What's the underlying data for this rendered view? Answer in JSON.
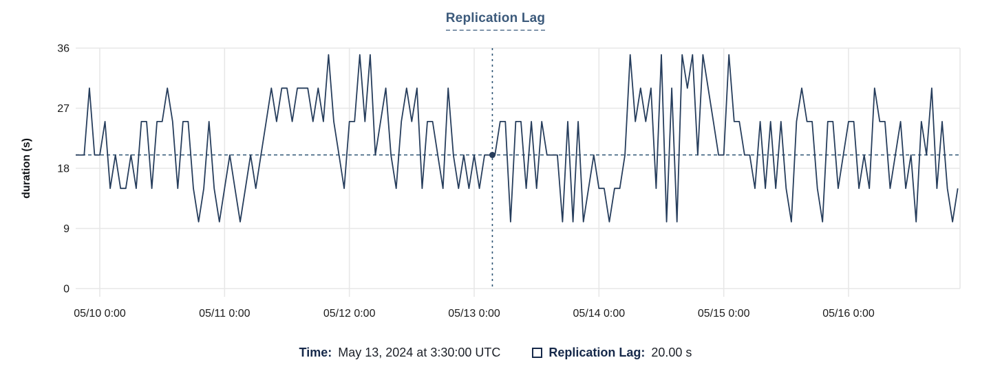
{
  "title": "Replication Lag",
  "colors": {
    "line": "#263d5c",
    "navy": "#16294a",
    "title": "#3c5a7b",
    "gridline": "#e7e7e7",
    "crosshair": "#2b5272",
    "tick_text": "#1a1a1a"
  },
  "tooltip_bar": {
    "time_label": "Time:",
    "time_value": "May 13, 2024 at 3:30:00 UTC",
    "swatch_icon": "square-outline-icon",
    "series_label": "Replication Lag:",
    "series_value": "20.00 s"
  },
  "chart_data": {
    "type": "line",
    "title": "Replication Lag",
    "xlabel": "",
    "ylabel": "duration (s)",
    "ylim": [
      0,
      36
    ],
    "y_ticks": [
      0,
      9,
      18,
      27,
      36
    ],
    "x_ticks": [
      "05/10 0:00",
      "05/11 0:00",
      "05/12 0:00",
      "05/13 0:00",
      "05/14 0:00",
      "05/15 0:00",
      "05/16 0:00"
    ],
    "grid": true,
    "legend_position": "bottom",
    "series_name": "Replication Lag",
    "interval_hours": 1,
    "start_hours_before_first_tick": 5,
    "values": [
      20,
      20,
      20,
      30,
      20,
      20,
      25,
      15,
      20,
      15,
      15,
      20,
      15,
      25,
      25,
      15,
      25,
      25,
      30,
      25,
      15,
      25,
      25,
      15,
      10,
      15,
      25,
      15,
      10,
      15,
      20,
      15,
      10,
      15,
      20,
      15,
      20,
      25,
      30,
      25,
      30,
      30,
      25,
      30,
      30,
      30,
      25,
      30,
      25,
      35,
      25,
      20,
      15,
      25,
      25,
      35,
      25,
      35,
      20,
      25,
      30,
      20,
      15,
      25,
      30,
      25,
      30,
      15,
      25,
      25,
      20,
      15,
      30,
      20,
      15,
      20,
      15,
      20,
      15,
      20,
      20,
      20,
      25,
      25,
      10,
      25,
      25,
      15,
      25,
      15,
      25,
      20,
      20,
      20,
      10,
      25,
      10,
      25,
      10,
      15,
      20,
      15,
      15,
      10,
      15,
      15,
      20,
      35,
      25,
      30,
      25,
      30,
      15,
      35,
      10,
      30,
      10,
      35,
      30,
      35,
      20,
      35,
      30,
      25,
      20,
      20,
      35,
      25,
      25,
      20,
      20,
      15,
      25,
      15,
      25,
      15,
      25,
      15,
      10,
      25,
      30,
      25,
      25,
      15,
      10,
      25,
      25,
      15,
      20,
      25,
      25,
      15,
      20,
      15,
      30,
      25,
      25,
      15,
      20,
      25,
      15,
      20,
      10,
      25,
      20,
      30,
      15,
      25,
      15,
      10,
      15
    ],
    "selected": {
      "time": "May 13, 2024 at 3:30:00 UTC",
      "hours_from_first_tick": 75.5,
      "value": 20,
      "value_label": "20.00 s"
    }
  }
}
